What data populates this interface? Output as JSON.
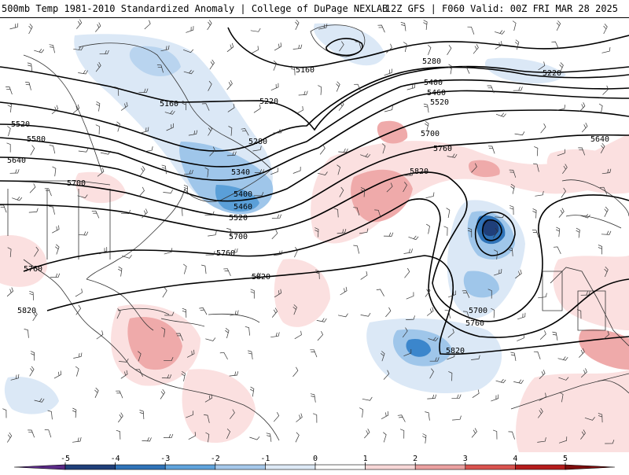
{
  "header": {
    "title": "500mb Temp 1981-2010 Standardized Anomaly | College of DuPage NEXLAB",
    "run_info": "12Z GFS | F060 Valid: 00Z FRI MAR 28 2025"
  },
  "contour_labels": [
    "5160",
    "5160",
    "5220",
    "5220",
    "5280",
    "5280",
    "5340",
    "5400",
    "5400",
    "5460",
    "5460",
    "5520",
    "5520",
    "5520",
    "5580",
    "5640",
    "5640",
    "5700",
    "5700",
    "5700",
    "5700",
    "5760",
    "5760",
    "5760",
    "5760",
    "5820",
    "5820",
    "5820",
    "5820"
  ],
  "colorbar": {
    "ticks": [
      "-5",
      "-4",
      "-3",
      "-2",
      "-1",
      "0",
      "1",
      "2",
      "3",
      "4",
      "5"
    ],
    "colors": [
      "#5a2a86",
      "#1f3f7a",
      "#2f73b8",
      "#5fa3dc",
      "#a5c8ea",
      "#dde9f6",
      "#ffffff",
      "#f7d7d7",
      "#eaa0a0",
      "#d9534f",
      "#b51c1c",
      "#7d0d0d",
      "#f0b020"
    ]
  }
}
